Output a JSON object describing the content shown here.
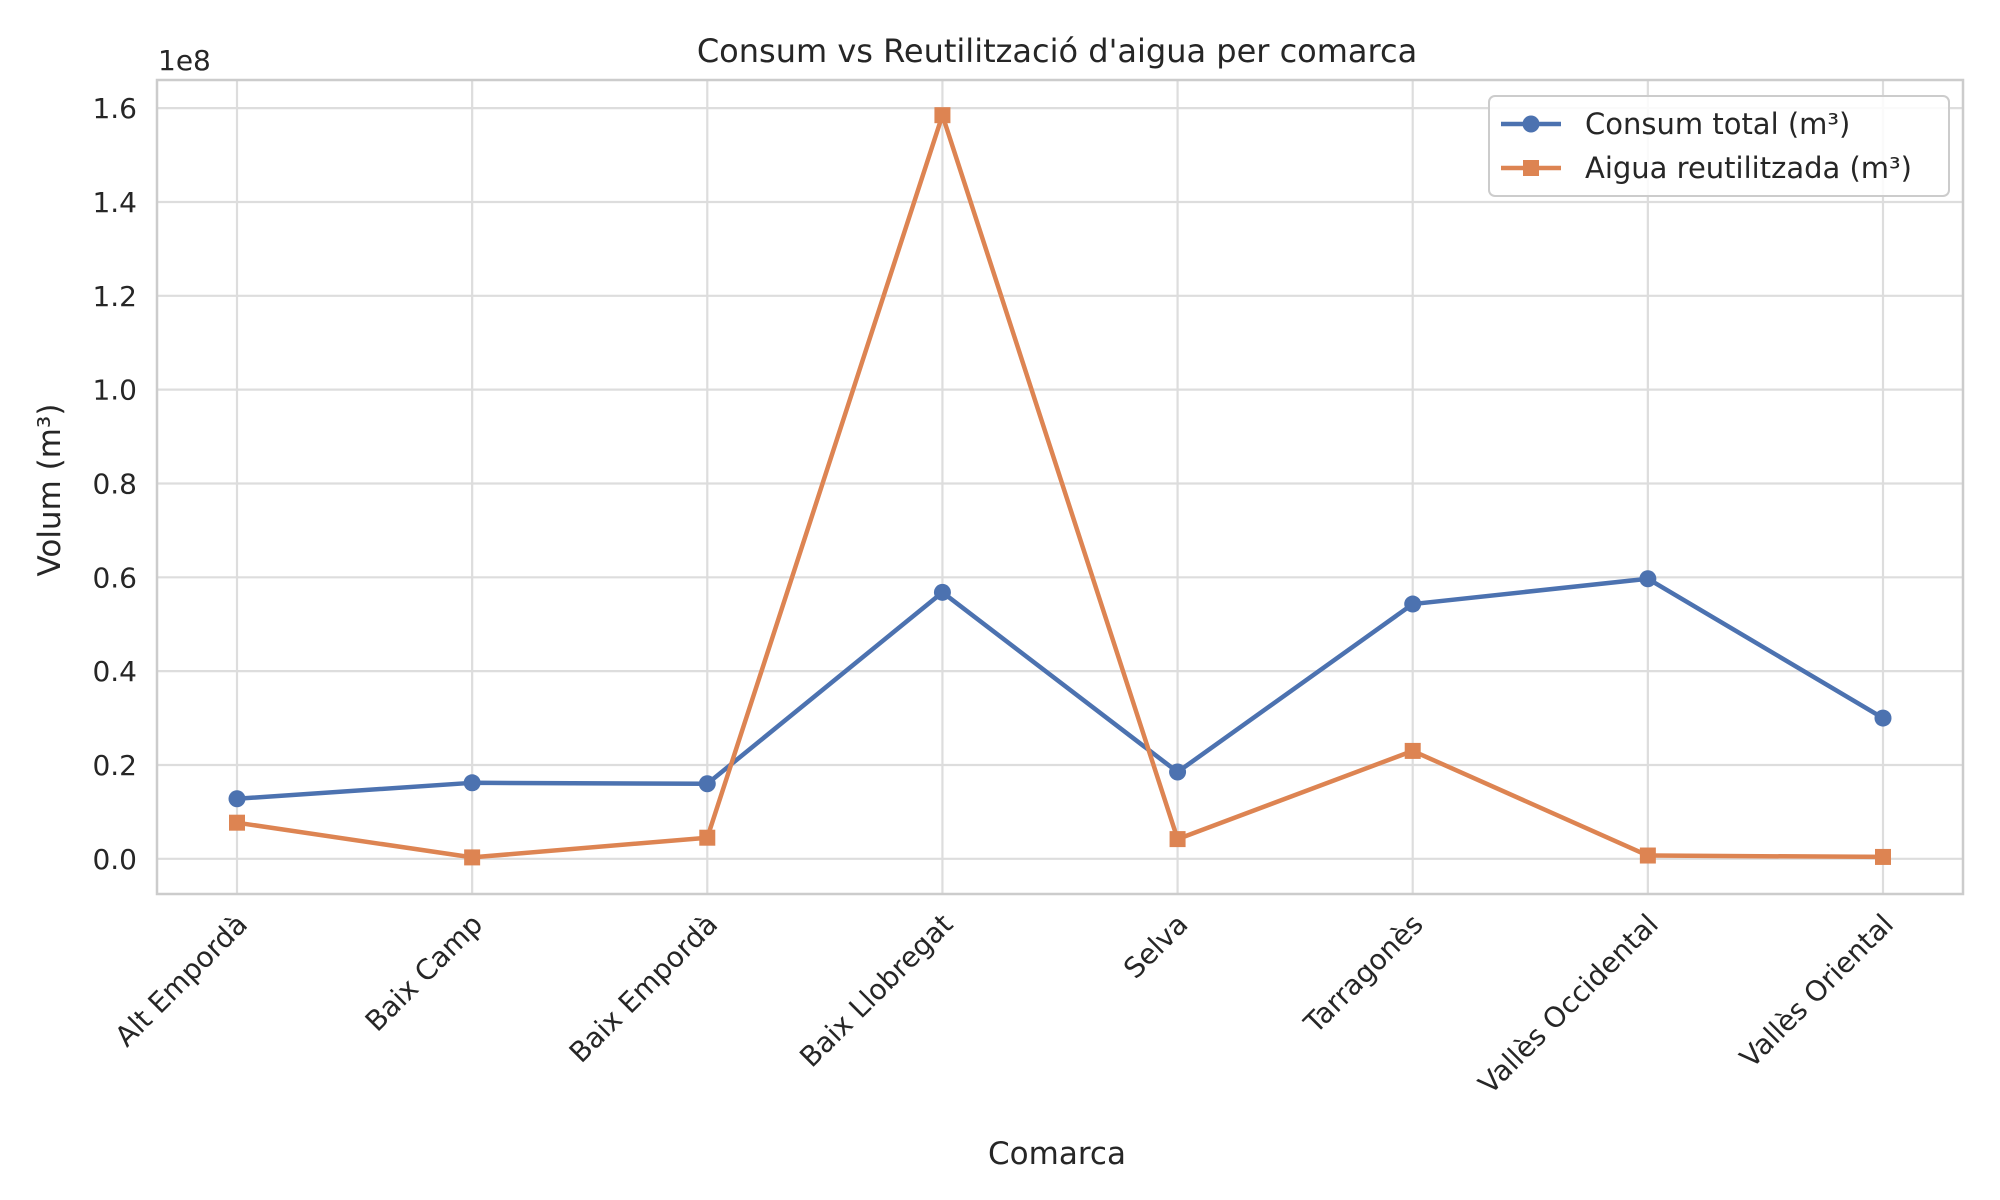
{
  "chart_data": {
    "type": "line",
    "title": "Consum vs Reutilització d'aigua per comarca",
    "xlabel": "Comarca",
    "ylabel": "Volum (m³)",
    "y_offset_label": "1e8",
    "categories": [
      "Alt Empordà",
      "Baix Camp",
      "Baix Empordà",
      "Baix Llobregat",
      "Selva",
      "Tarragonès",
      "Vallès Occidental",
      "Vallès Oriental"
    ],
    "ylim": [
      -0.075,
      1.66
    ],
    "yticks": [
      0.0,
      0.2,
      0.4,
      0.6,
      0.8,
      1.0,
      1.2,
      1.4,
      1.6
    ],
    "ytick_labels": [
      "0.0",
      "0.2",
      "0.4",
      "0.6",
      "0.8",
      "1.0",
      "1.2",
      "1.4",
      "1.6"
    ],
    "grid": true,
    "legend_position": "top-right",
    "series": [
      {
        "name": "Consum total (m³)",
        "color": "#4c72b0",
        "marker": "circle",
        "values": [
          0.128,
          0.162,
          0.16,
          0.568,
          0.185,
          0.543,
          0.597,
          0.3
        ]
      },
      {
        "name": "Aigua reutilitzada (m³)",
        "color": "#dd8452",
        "marker": "square",
        "values": [
          0.077,
          0.003,
          0.045,
          1.585,
          0.042,
          0.23,
          0.007,
          0.004
        ]
      }
    ]
  }
}
